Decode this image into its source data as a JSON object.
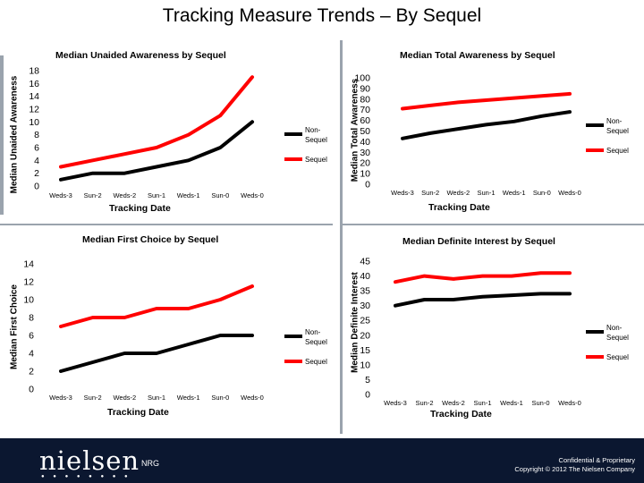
{
  "slide": {
    "title": "Tracking Measure Trends – By Sequel",
    "nrg": "NRG",
    "confidential_line1": "Confidential & Proprietary",
    "confidential_line2": "Copyright © 2012 The Nielsen Company",
    "logo_text": "nielsen"
  },
  "colors": {
    "non_sequel": "#000000",
    "sequel": "#ff0000",
    "footer": "#0b1730",
    "divider": "#9aa3ad"
  },
  "chart_data": [
    {
      "type": "line",
      "title": "Median Unaided Awareness by Sequel",
      "xlabel": "Tracking Date",
      "ylabel": "Median Unaided Awareness",
      "categories": [
        "Weds-3",
        "Sun-2",
        "Weds-2",
        "Sun-1",
        "Weds-1",
        "Sun-0",
        "Weds-0"
      ],
      "ylim": [
        0,
        18
      ],
      "yticks": [
        "0",
        "2",
        "4",
        "6",
        "8",
        "10",
        "12",
        "14",
        "16",
        "18"
      ],
      "legend": "right",
      "series": [
        {
          "name": "Non-Sequel",
          "values": [
            1,
            2,
            2,
            3,
            4,
            6,
            10
          ]
        },
        {
          "name": "Sequel",
          "values": [
            3,
            4,
            5,
            6,
            8,
            11,
            17
          ]
        }
      ]
    },
    {
      "type": "line",
      "title": "Median Total Awareness by Sequel",
      "xlabel": "Tracking Date",
      "ylabel": "Median Total Awareness",
      "categories": [
        "Weds-3",
        "Sun-2",
        "Weds-2",
        "Sun-1",
        "Weds-1",
        "Sun-0",
        "Weds-0"
      ],
      "ylim": [
        0,
        100
      ],
      "yticks": [
        "0",
        "10",
        "20",
        "30",
        "40",
        "50",
        "60",
        "70",
        "80",
        "90",
        "100"
      ],
      "legend": "right",
      "series": [
        {
          "name": "Non-Sequel",
          "values": [
            43,
            48,
            52,
            56,
            59,
            64,
            68
          ]
        },
        {
          "name": "Sequel",
          "values": [
            71,
            74,
            77,
            79,
            81,
            83,
            85
          ]
        }
      ]
    },
    {
      "type": "line",
      "title": "Median First Choice by Sequel",
      "xlabel": "Tracking Date",
      "ylabel": "Median First Choice",
      "categories": [
        "Weds-3",
        "Sun-2",
        "Weds-2",
        "Sun-1",
        "Weds-1",
        "Sun-0",
        "Weds-0"
      ],
      "ylim": [
        0,
        14
      ],
      "yticks": [
        "0",
        "2",
        "4",
        "6",
        "8",
        "10",
        "12",
        "14"
      ],
      "legend": "right",
      "series": [
        {
          "name": "Non-Sequel",
          "values": [
            2,
            3,
            4,
            4,
            5,
            6,
            6
          ]
        },
        {
          "name": "Sequel",
          "values": [
            7,
            8,
            8,
            9,
            9,
            10,
            11.5
          ]
        }
      ]
    },
    {
      "type": "line",
      "title": "Median Definite Interest by Sequel",
      "xlabel": "Tracking Date",
      "ylabel": "Median Definite Interest",
      "categories": [
        "Weds-3",
        "Sun-2",
        "Weds-2",
        "Sun-1",
        "Weds-1",
        "Sun-0",
        "Weds-0"
      ],
      "ylim": [
        0,
        45
      ],
      "yticks": [
        "0",
        "5",
        "10",
        "15",
        "20",
        "25",
        "30",
        "35",
        "40",
        "45"
      ],
      "legend": "right",
      "series": [
        {
          "name": "Non-Sequel",
          "values": [
            30,
            32,
            32,
            33,
            33.5,
            34,
            34
          ]
        },
        {
          "name": "Sequel",
          "values": [
            38,
            40,
            39,
            40,
            40,
            41,
            41
          ]
        }
      ]
    }
  ]
}
